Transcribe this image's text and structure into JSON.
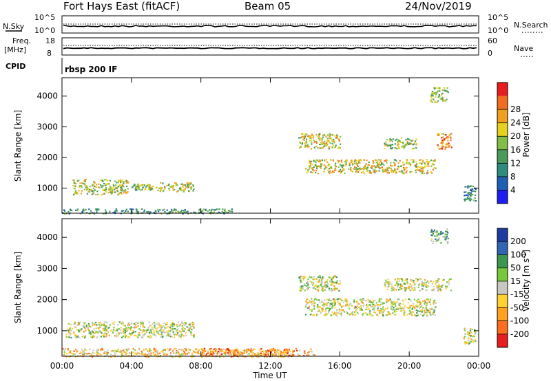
{
  "header": {
    "station": "Fort Hays East (fitACF)",
    "beam": "Beam 05",
    "date": "24/Nov/2019"
  },
  "strip_noise": {
    "left_label": "N.Sky",
    "right_label": "N.Search",
    "left_ticks": [
      "10^5",
      "10^0"
    ],
    "right_ticks": [
      "10^5",
      "10^0"
    ]
  },
  "strip_freq": {
    "left_label_1": "Freq.",
    "left_label_2": "[MHz]",
    "right_label": "Nave",
    "left_ticks": [
      "18",
      "8"
    ],
    "right_ticks": [
      "60",
      "0"
    ]
  },
  "cpid": {
    "label": "CPID",
    "value": "rbsp 200 IF"
  },
  "colors": {
    "power_scale": [
      "#1e1ef0",
      "#1e5fb4",
      "#2d8c7d",
      "#4a9a5a",
      "#82be46",
      "#e6d21e",
      "#f0a01e",
      "#f06e1e",
      "#e61e1e"
    ],
    "velocity_scale": [
      "#1e3ca0",
      "#3264b4",
      "#3c9650",
      "#78c83c",
      "#c8c8c0",
      "#ffd232",
      "#ffa01e",
      "#ff6e1e",
      "#e61e1e"
    ],
    "noise_color": "#000000"
  },
  "chart_data": [
    {
      "type": "heatmap",
      "name": "power",
      "ylabel": "Slant Range [km]",
      "yticks": [
        "1000",
        "2000",
        "3000",
        "4000"
      ],
      "ylim": [
        180,
        4600
      ],
      "xlim": [
        0,
        24
      ],
      "colorbar_label": "Power [dB]",
      "colorbar_ticks": [
        "4",
        "8",
        "12",
        "16",
        "20",
        "24",
        "28"
      ],
      "colorbar_range": [
        0,
        32
      ],
      "features": [
        {
          "t0": 0.0,
          "t1": 9.8,
          "r0": 180,
          "r1": 340,
          "level": 0.35
        },
        {
          "t0": 0.6,
          "t1": 3.8,
          "r0": 800,
          "r1": 1300,
          "level": 0.55
        },
        {
          "t0": 4.0,
          "t1": 5.2,
          "r0": 950,
          "r1": 1150,
          "level": 0.5
        },
        {
          "t0": 5.4,
          "t1": 7.6,
          "r0": 900,
          "r1": 1200,
          "level": 0.55
        },
        {
          "t0": 13.6,
          "t1": 16.0,
          "r0": 2300,
          "r1": 2800,
          "level": 0.6
        },
        {
          "t0": 14.0,
          "t1": 21.5,
          "r0": 1500,
          "r1": 1950,
          "level": 0.6
        },
        {
          "t0": 18.5,
          "t1": 20.5,
          "r0": 2300,
          "r1": 2650,
          "level": 0.5
        },
        {
          "t0": 21.6,
          "t1": 22.4,
          "r0": 2300,
          "r1": 2800,
          "level": 0.75
        },
        {
          "t0": 21.2,
          "t1": 22.2,
          "r0": 3800,
          "r1": 4300,
          "level": 0.5
        },
        {
          "t0": 23.1,
          "t1": 23.8,
          "r0": 600,
          "r1": 1100,
          "level": 0.3
        }
      ]
    },
    {
      "type": "heatmap",
      "name": "velocity",
      "ylabel": "Slant Range [km]",
      "yticks": [
        "1000",
        "2000",
        "3000",
        "4000"
      ],
      "ylim": [
        180,
        4600
      ],
      "xlim": [
        0,
        24
      ],
      "xticks": [
        "00:00",
        "04:00",
        "08:00",
        "12:00",
        "16:00",
        "20:00",
        "00:00"
      ],
      "xlabel": "Time UT",
      "colorbar_label": "Velocity [m s^-1]",
      "colorbar_ticks": [
        "200",
        "100",
        "50",
        "15",
        "-15",
        "-50",
        "-100",
        "-200"
      ],
      "features": [
        {
          "t0": 0.0,
          "t1": 13.0,
          "r0": 180,
          "r1": 450,
          "level": 0.62
        },
        {
          "t0": 8.0,
          "t1": 14.5,
          "r0": 180,
          "r1": 450,
          "level": 0.75
        },
        {
          "t0": 0.2,
          "t1": 7.6,
          "r0": 800,
          "r1": 1300,
          "level": 0.5
        },
        {
          "t0": 13.6,
          "t1": 16.0,
          "r0": 2300,
          "r1": 2800,
          "level": 0.5
        },
        {
          "t0": 14.0,
          "t1": 21.5,
          "r0": 1500,
          "r1": 2050,
          "level": 0.5
        },
        {
          "t0": 18.5,
          "t1": 22.4,
          "r0": 2300,
          "r1": 2700,
          "level": 0.5
        },
        {
          "t0": 21.2,
          "t1": 22.2,
          "r0": 3800,
          "r1": 4300,
          "level": 0.35
        },
        {
          "t0": 23.1,
          "t1": 23.8,
          "r0": 600,
          "r1": 1100,
          "level": 0.5
        }
      ]
    }
  ]
}
